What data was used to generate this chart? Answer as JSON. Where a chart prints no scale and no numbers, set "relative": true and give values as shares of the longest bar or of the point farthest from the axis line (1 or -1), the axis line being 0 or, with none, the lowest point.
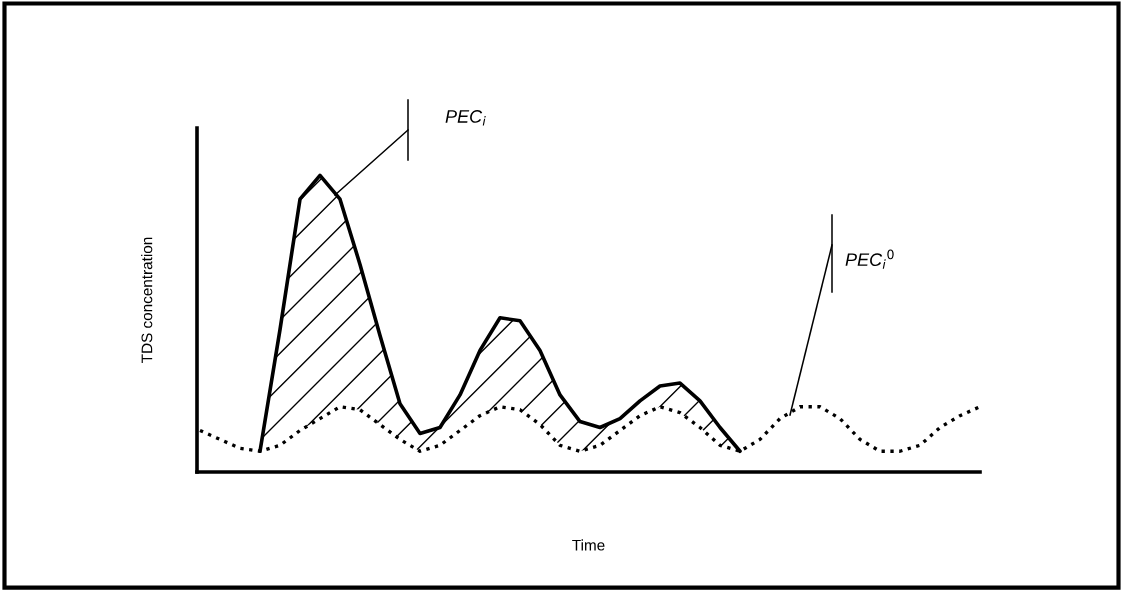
{
  "chart_data": {
    "type": "line",
    "relative": true,
    "xlabel": "Time",
    "ylabel": "TDS concentration",
    "categories": [
      null,
      null,
      null,
      null,
      null,
      null,
      null,
      null,
      null,
      null,
      null,
      null,
      null,
      null,
      null,
      null,
      null,
      null,
      null,
      null,
      null,
      null,
      null,
      null,
      null,
      null,
      null,
      null,
      null,
      null,
      null,
      null,
      null,
      null,
      null,
      null,
      null,
      null,
      null,
      null
    ],
    "series": [
      {
        "color": "#000000",
        "line_style": "solid",
        "values": [
          null,
          null,
          null,
          0.07,
          0.48,
          0.92,
          1.0,
          0.92,
          0.7,
          0.46,
          0.23,
          0.13,
          0.15,
          0.26,
          0.41,
          0.52,
          0.51,
          0.41,
          0.26,
          0.17,
          0.15,
          0.18,
          0.24,
          0.29,
          0.3,
          0.24,
          0.15,
          0.07,
          null,
          null,
          null,
          null,
          null,
          null,
          null,
          null,
          null,
          null,
          null,
          null
        ],
        "lower": [
          null,
          null,
          null,
          0.07,
          0.09,
          0.14,
          0.18,
          0.22,
          0.21,
          0.16,
          0.11,
          0.07,
          0.09,
          0.14,
          0.19,
          0.22,
          0.21,
          0.16,
          0.09,
          0.07,
          0.09,
          0.14,
          0.19,
          0.22,
          0.2,
          0.15,
          0.09,
          0.07,
          null,
          null,
          null,
          null,
          null,
          null,
          null,
          null,
          null,
          null,
          null,
          null
        ],
        "upper": [
          null,
          null,
          null,
          0.07,
          0.48,
          0.92,
          1.0,
          0.92,
          0.7,
          0.46,
          0.23,
          0.13,
          0.15,
          0.26,
          0.41,
          0.52,
          0.51,
          0.41,
          0.26,
          0.17,
          0.15,
          0.18,
          0.24,
          0.29,
          0.3,
          0.24,
          0.15,
          0.07,
          null,
          null,
          null,
          null,
          null,
          null,
          null,
          null,
          null,
          null,
          null,
          null
        ]
      },
      {
        "color": "#000000",
        "line_style": "dotted",
        "values": [
          0.14,
          0.11,
          0.08,
          0.07,
          0.09,
          0.14,
          0.18,
          0.22,
          0.21,
          0.16,
          0.11,
          0.07,
          0.09,
          0.14,
          0.19,
          0.22,
          0.21,
          0.16,
          0.09,
          0.07,
          0.09,
          0.14,
          0.19,
          0.22,
          0.2,
          0.15,
          0.09,
          0.07,
          0.11,
          0.18,
          0.22,
          0.22,
          0.18,
          0.11,
          0.07,
          0.07,
          0.09,
          0.15,
          0.19,
          0.22
        ]
      }
    ],
    "annotations": [
      "PEC$_{i}$",
      "PEC$_{i}$$^{0}$"
    ]
  }
}
